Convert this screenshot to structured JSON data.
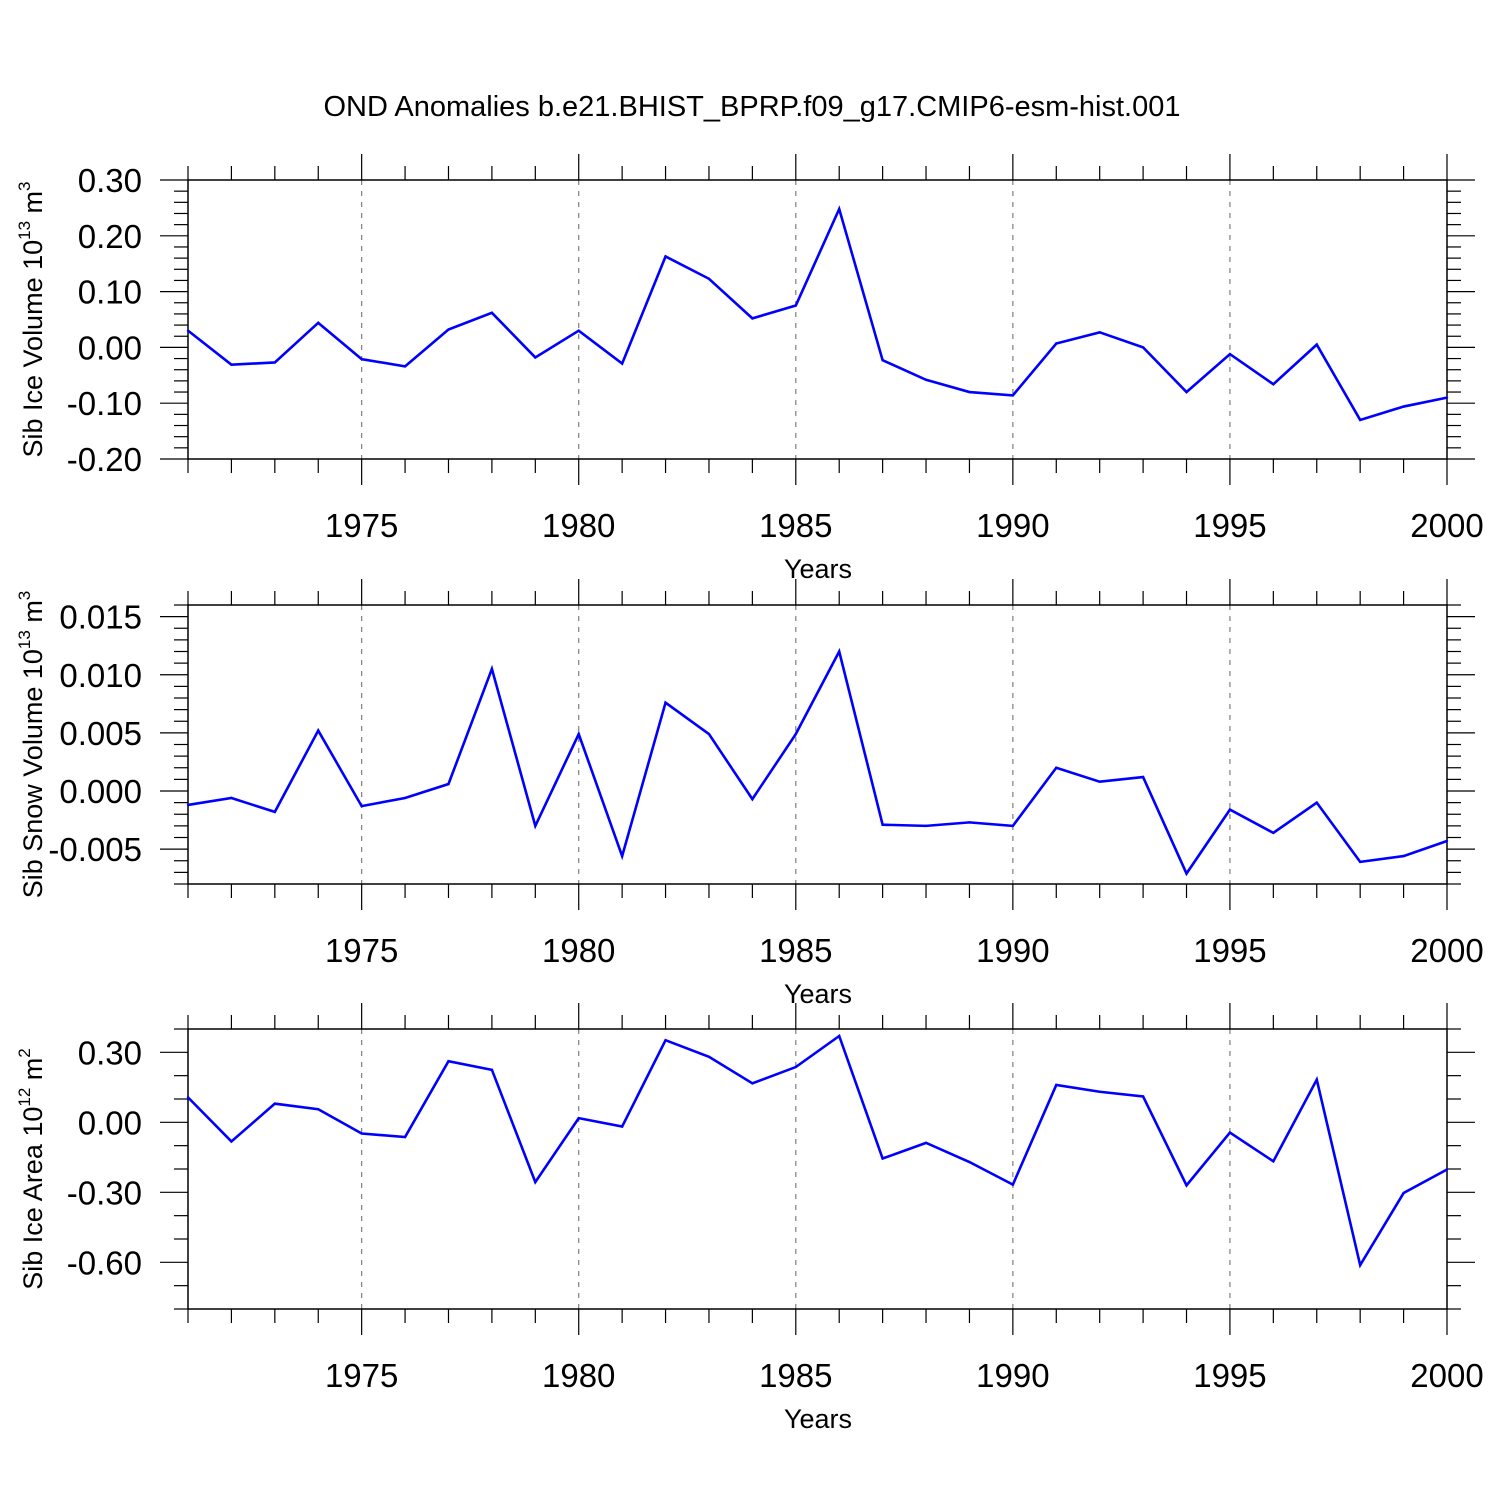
{
  "title": "OND Anomalies b.e21.BHIST_BPRP.f09_g17.CMIP6-esm-hist.001",
  "colors": {
    "line": "#0000ff",
    "axis": "#000000",
    "gridline": "#7f7f7f"
  },
  "chart_data": [
    {
      "type": "line",
      "ylabel": {
        "text": "Sib Ice Volume 10",
        "exponent": "13",
        "unit": " m",
        "unit_exponent": "3"
      },
      "xlabel": "Years",
      "xlim": [
        1971,
        2000
      ],
      "ylim": [
        -0.2,
        0.3
      ],
      "yticks": [
        -0.2,
        -0.1,
        0.0,
        0.1,
        0.2,
        0.3
      ],
      "ytick_labels": [
        "-0.20",
        "-0.10",
        "0.00",
        "0.10",
        "0.20",
        "0.30"
      ],
      "yminor_step": 0.02,
      "xticks": [
        1975,
        1980,
        1985,
        1990,
        1995,
        2000
      ],
      "xtick_labels": [
        "1975",
        "1980",
        "1985",
        "1990",
        "1995",
        "2000"
      ],
      "grid": "vertical dashed at major x ticks",
      "x": [
        1971,
        1972,
        1973,
        1974,
        1975,
        1976,
        1977,
        1978,
        1979,
        1980,
        1981,
        1982,
        1983,
        1984,
        1985,
        1986,
        1987,
        1988,
        1989,
        1990,
        1991,
        1992,
        1993,
        1994,
        1995,
        1996,
        1997,
        1998,
        1999,
        2000
      ],
      "values": [
        0.03,
        -0.031,
        -0.027,
        0.044,
        -0.021,
        -0.034,
        0.032,
        0.062,
        -0.018,
        0.03,
        -0.029,
        0.163,
        0.123,
        0.052,
        0.075,
        0.248,
        -0.023,
        -0.058,
        -0.08,
        -0.086,
        0.007,
        0.027,
        0.0,
        -0.08,
        -0.012,
        -0.066,
        0.005,
        -0.13,
        -0.106,
        -0.09
      ]
    },
    {
      "type": "line",
      "ylabel": {
        "text": "Sib Snow Volume 10",
        "exponent": "13",
        "unit": " m",
        "unit_exponent": "3"
      },
      "xlabel": "Years",
      "xlim": [
        1971,
        2000
      ],
      "ylim": [
        -0.008,
        0.016
      ],
      "yticks": [
        -0.005,
        0.0,
        0.005,
        0.01,
        0.015
      ],
      "ytick_labels": [
        "-0.005",
        "0.000",
        "0.005",
        "0.010",
        "0.015"
      ],
      "yminor_step": 0.001,
      "xticks": [
        1975,
        1980,
        1985,
        1990,
        1995,
        2000
      ],
      "xtick_labels": [
        "1975",
        "1980",
        "1985",
        "1990",
        "1995",
        "2000"
      ],
      "grid": "vertical dashed at major x ticks",
      "x": [
        1971,
        1972,
        1973,
        1974,
        1975,
        1976,
        1977,
        1978,
        1979,
        1980,
        1981,
        1982,
        1983,
        1984,
        1985,
        1986,
        1987,
        1988,
        1989,
        1990,
        1991,
        1992,
        1993,
        1994,
        1995,
        1996,
        1997,
        1998,
        1999,
        2000
      ],
      "values": [
        -0.0012,
        -0.0006,
        -0.0018,
        0.0052,
        -0.0013,
        -0.0006,
        0.0006,
        0.0105,
        -0.003,
        0.0049,
        -0.0056,
        0.0076,
        0.0049,
        -0.0007,
        0.0049,
        0.012,
        -0.0029,
        -0.003,
        -0.0027,
        -0.003,
        0.002,
        0.0008,
        0.0012,
        -0.0071,
        -0.0016,
        -0.0036,
        -0.001,
        -0.0061,
        -0.0056,
        -0.0043
      ]
    },
    {
      "type": "line",
      "ylabel": {
        "text": "Sib Ice Area 10",
        "exponent": "12",
        "unit": " m",
        "unit_exponent": "2"
      },
      "xlabel": "Years",
      "xlim": [
        1971,
        2000
      ],
      "ylim": [
        -0.8,
        0.4
      ],
      "yticks": [
        -0.6,
        -0.3,
        0.0,
        0.3
      ],
      "ytick_labels": [
        "-0.60",
        "-0.30",
        "0.00",
        "0.30"
      ],
      "yminor_step": 0.1,
      "xticks": [
        1975,
        1980,
        1985,
        1990,
        1995,
        2000
      ],
      "xtick_labels": [
        "1975",
        "1980",
        "1985",
        "1990",
        "1995",
        "2000"
      ],
      "grid": "vertical dashed at major x ticks",
      "x": [
        1971,
        1972,
        1973,
        1974,
        1975,
        1976,
        1977,
        1978,
        1979,
        1980,
        1981,
        1982,
        1983,
        1984,
        1985,
        1986,
        1987,
        1988,
        1989,
        1990,
        1991,
        1992,
        1993,
        1994,
        1995,
        1996,
        1997,
        1998,
        1999,
        2000
      ],
      "values": [
        0.107,
        -0.082,
        0.08,
        0.056,
        -0.048,
        -0.063,
        0.262,
        0.225,
        -0.256,
        0.018,
        -0.018,
        0.352,
        0.281,
        0.167,
        0.237,
        0.37,
        -0.155,
        -0.088,
        -0.17,
        -0.267,
        0.16,
        0.131,
        0.111,
        -0.27,
        -0.044,
        -0.167,
        0.183,
        -0.612,
        -0.303,
        -0.202
      ]
    }
  ]
}
